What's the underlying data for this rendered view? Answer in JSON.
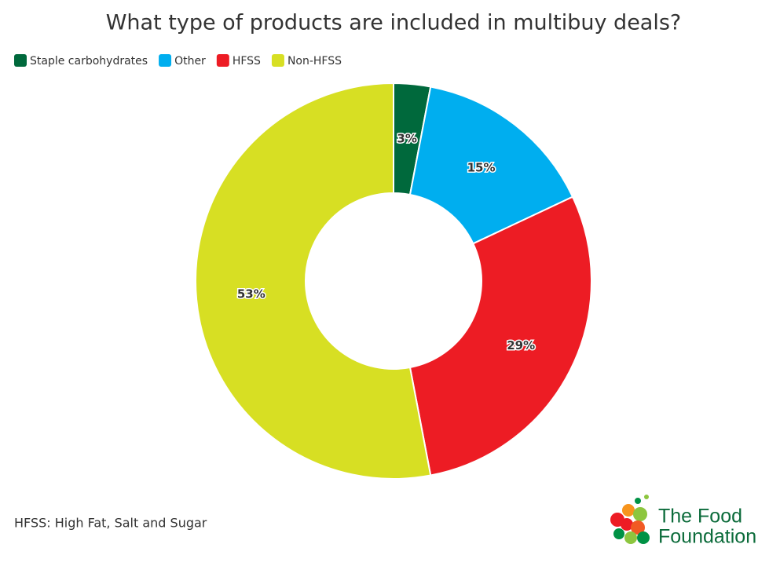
{
  "chart_data": {
    "type": "donut",
    "title": "What type of products are included in multibuy deals?",
    "categories": [
      "Staple carbohydrates",
      "Other",
      "HFSS",
      "Non-HFSS"
    ],
    "values": [
      3,
      15,
      29,
      53
    ],
    "value_labels": [
      "3%",
      "15%",
      "29%",
      "53%"
    ],
    "colors": [
      "#00693c",
      "#00aeef",
      "#ed1c24",
      "#d7df23"
    ],
    "legend": "top-left",
    "note": "HFSS: High Fat, Salt and Sugar"
  },
  "logo": {
    "line1": "The Food",
    "line2": "Foundation"
  }
}
